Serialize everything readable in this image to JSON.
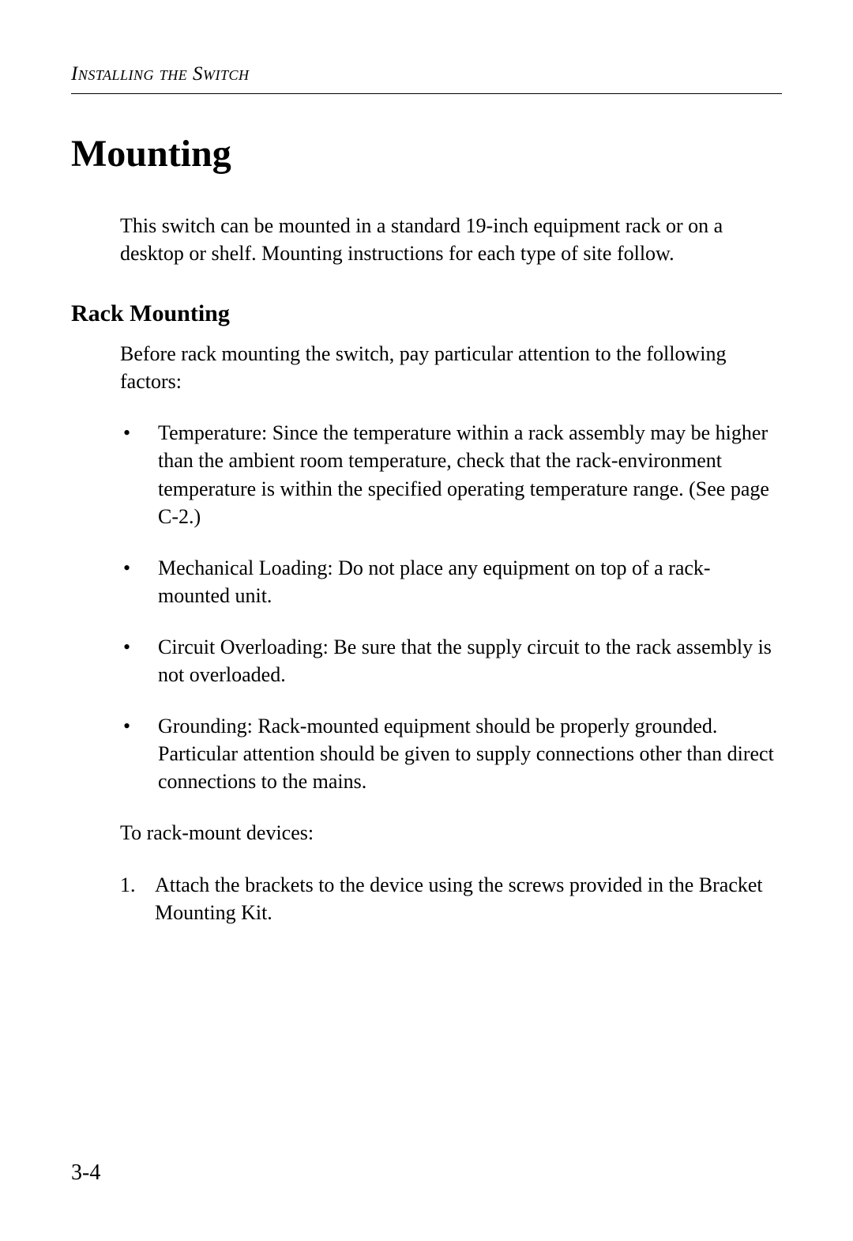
{
  "page": {
    "running_head": "Installing the Switch",
    "page_number": "3-4",
    "background_color": "#ffffff",
    "text_color": "#000000"
  },
  "content": {
    "title": "Mounting",
    "intro": "This switch can be mounted in a standard 19-inch equipment rack or on a desktop or shelf. Mounting instructions for each type of site follow.",
    "subheading": "Rack Mounting",
    "lead": "Before rack mounting the switch, pay particular attention to the following factors:",
    "bullets": [
      "Temperature: Since the temperature within a rack assembly may be higher than the ambient room temperature, check that the rack-environment temperature is within the specified operating temperature range. (See page C-2.)",
      "Mechanical Loading: Do not place any equipment on top of a rack-mounted unit.",
      "Circuit Overloading: Be sure that the supply circuit to the rack assembly is not overloaded.",
      "Grounding: Rack-mounted equipment should be properly grounded. Particular attention should be given to supply connections other than direct connections to the mains."
    ],
    "after_bullets": "To rack-mount devices:",
    "steps": [
      {
        "n": "1.",
        "text": "Attach the brackets to the device using the screws provided in the Bracket Mounting Kit."
      }
    ]
  },
  "style": {
    "title_fontsize_pt": 36,
    "subheading_fontsize_pt": 22,
    "body_fontsize_pt": 19,
    "rule_color": "#000000",
    "font_family": "Garamond / Times-like serif"
  }
}
